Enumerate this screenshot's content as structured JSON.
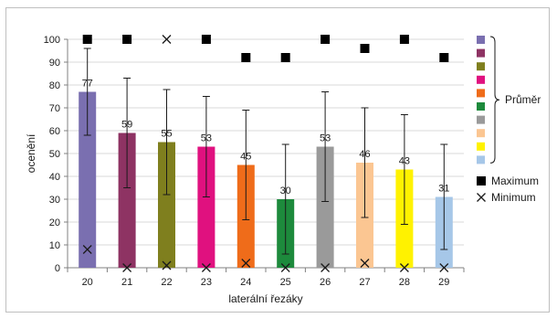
{
  "chart_data": {
    "type": "bar",
    "xlabel": "laterální řezáky",
    "ylabel": "ocenění",
    "ylim": [
      0,
      100
    ],
    "yticks": [
      0,
      10,
      20,
      30,
      40,
      50,
      60,
      70,
      80,
      90,
      100
    ],
    "categories": [
      "20",
      "21",
      "22",
      "23",
      "24",
      "25",
      "26",
      "27",
      "28",
      "29"
    ],
    "series": [
      {
        "name": "Průměr",
        "values": [
          77,
          59,
          55,
          53,
          45,
          30,
          53,
          46,
          43,
          31
        ],
        "error_low": [
          58,
          35,
          32,
          31,
          21,
          6,
          29,
          22,
          19,
          8
        ],
        "error_high": [
          96,
          83,
          78,
          75,
          69,
          54,
          77,
          70,
          67,
          54
        ],
        "colors": [
          "#7a6fb0",
          "#8e3363",
          "#7f7f1e",
          "#e0117f",
          "#ef6c1a",
          "#1d8a3c",
          "#9a9a9a",
          "#fbc692",
          "#fff200",
          "#a6c7e8"
        ]
      },
      {
        "name": "Maximum",
        "marker": "square",
        "values": [
          100,
          100,
          100,
          100,
          92,
          92,
          100,
          96,
          100,
          92
        ]
      },
      {
        "name": "Minimum",
        "marker": "x",
        "values": [
          8,
          0,
          1,
          0,
          2,
          0,
          0,
          2,
          0,
          0
        ]
      }
    ],
    "maximum_markers": [
      0,
      1,
      3,
      4,
      5,
      6,
      7,
      8,
      9
    ],
    "minimum_markers": [
      0,
      1,
      2,
      3,
      4,
      5,
      6,
      7,
      8,
      9
    ],
    "extra_x_marker": {
      "index": 2,
      "value": 100
    },
    "legend": {
      "placement": "right",
      "group_label": "Průměr",
      "maximum_label": "Maximum",
      "minimum_label": "Minimum"
    },
    "grid": true
  }
}
